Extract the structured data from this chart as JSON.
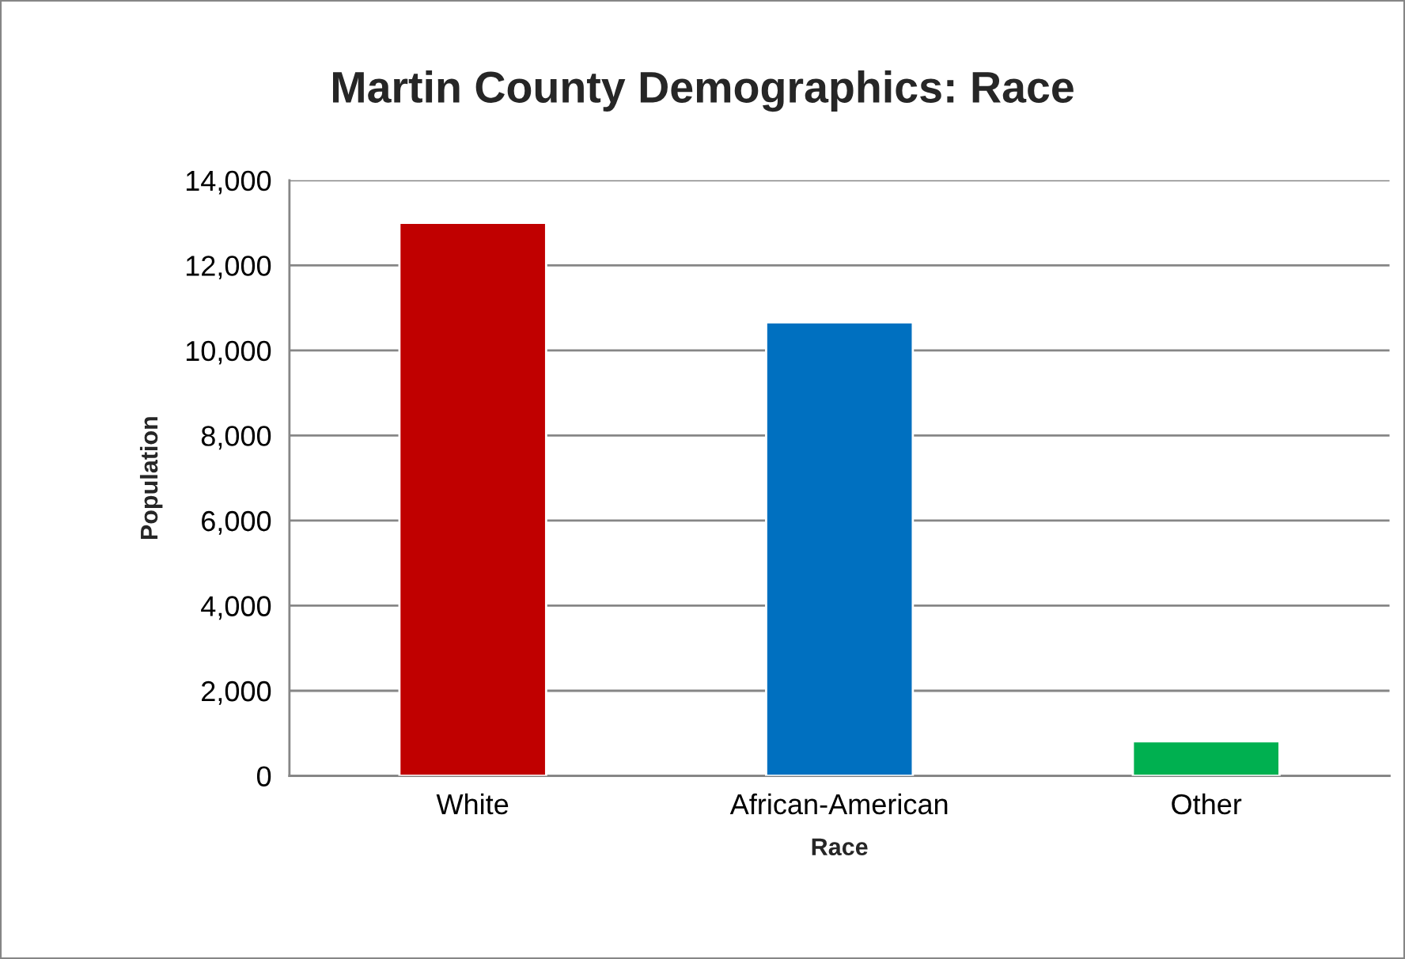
{
  "chart_data": {
    "type": "bar",
    "title": "Martin County Demographics: Race",
    "xlabel": "Race",
    "ylabel": "Population",
    "categories": [
      "White",
      "African-American",
      "Other"
    ],
    "values": [
      13000,
      10660,
      810
    ],
    "colors": [
      "#c00000",
      "#0070c0",
      "#00b050"
    ],
    "ylim": [
      0,
      14000
    ],
    "yticks": [
      0,
      {
        "value": 2000,
        "label": "2,000"
      },
      {
        "value": 4000,
        "label": "4,000"
      },
      {
        "value": 6000,
        "label": "6,000"
      },
      {
        "value": 8000,
        "label": "8,000"
      },
      {
        "value": 10000,
        "label": "10,000"
      },
      {
        "value": 12000,
        "label": "12,000"
      },
      {
        "value": 14000,
        "label": "14,000"
      }
    ],
    "grid": "y",
    "legend": false
  }
}
